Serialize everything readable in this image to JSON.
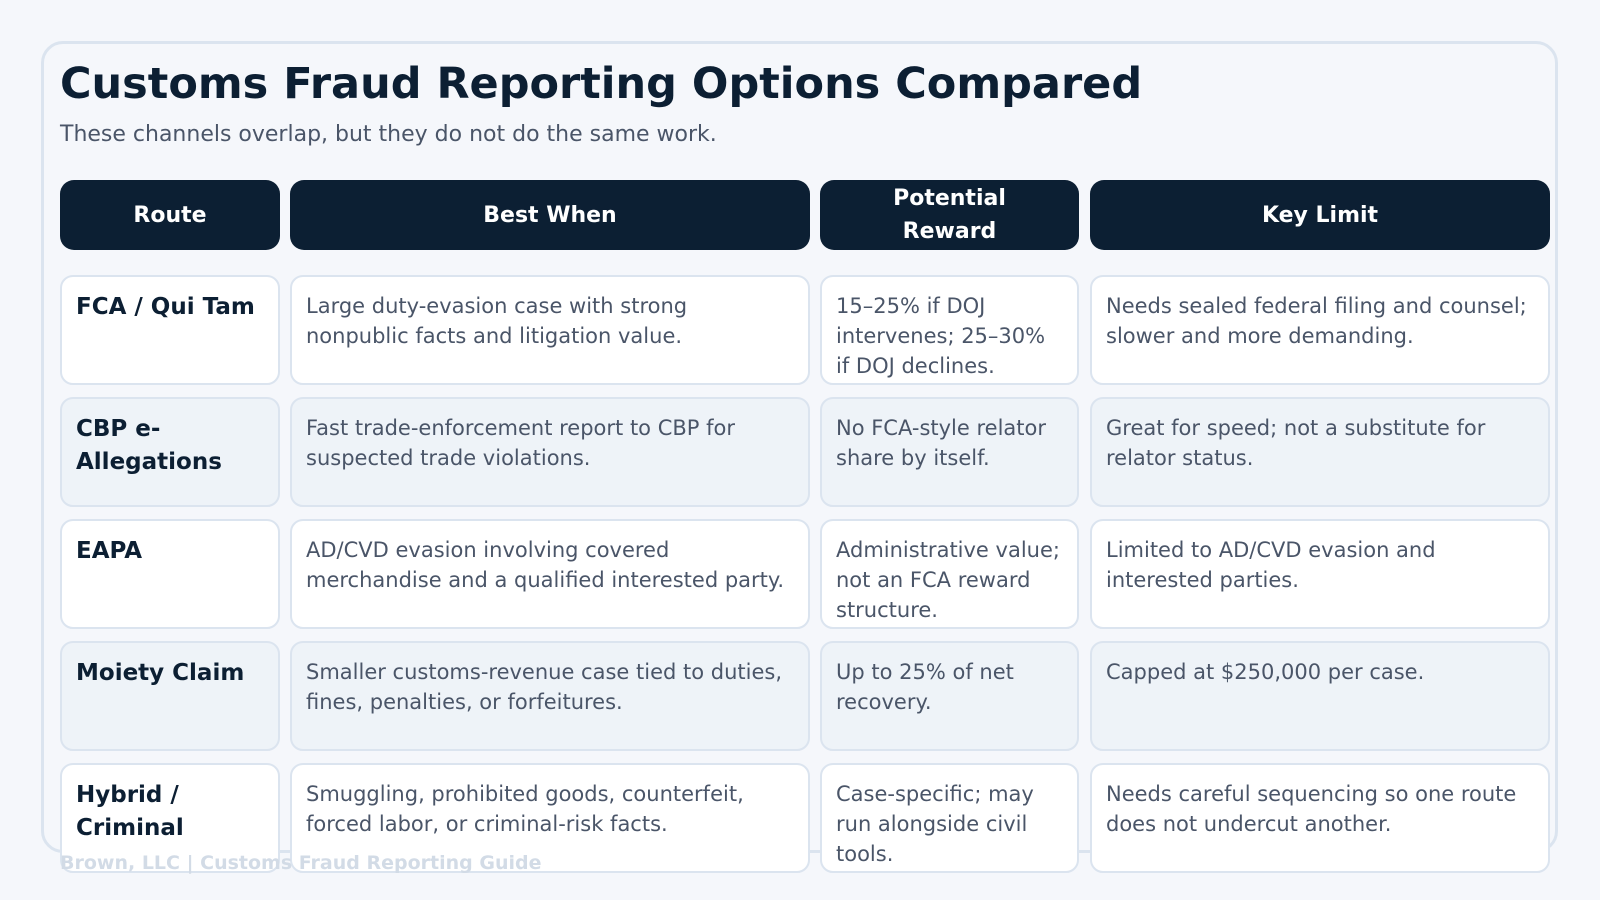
{
  "title": "Customs Fraud Reporting Options Compared",
  "subtitle": "These channels overlap, but they do not do the same work.",
  "columns": [
    "Route",
    "Best When",
    "Potential Reward",
    "Key Limit"
  ],
  "rows": [
    {
      "route": "FCA / Qui Tam",
      "best_when": "Large duty-evasion case with strong nonpublic facts and litigation value.",
      "reward": "15–25% if DOJ intervenes; 25–30% if DOJ declines.",
      "limit": "Needs sealed federal filing and counsel; slower and more demanding."
    },
    {
      "route": "CBP e-Allegations",
      "best_when": "Fast trade-enforcement report to CBP for suspected trade violations.",
      "reward": "No FCA-style relator share by itself.",
      "limit": "Great for speed; not a substitute for relator status."
    },
    {
      "route": "EAPA",
      "best_when": "AD/CVD evasion involving covered merchandise and a qualified interested party.",
      "reward": "Administrative value; not an FCA reward structure.",
      "limit": "Limited to AD/CVD evasion and interested parties."
    },
    {
      "route": "Moiety Claim",
      "best_when": "Smaller customs-revenue case tied to duties, fines, penalties, or forfeitures.",
      "reward": "Up to 25% of net recovery.",
      "limit": "Capped at $250,000 per case."
    },
    {
      "route": "Hybrid / Criminal",
      "best_when": "Smuggling, prohibited goods, counterfeit, forced labor, or criminal-risk facts.",
      "reward": "Case-specific; may run alongside civil tools.",
      "limit": "Needs careful sequencing so one route does not undercut another."
    }
  ],
  "footer": "Brown, LLC | Customs Fraud Reporting Guide"
}
